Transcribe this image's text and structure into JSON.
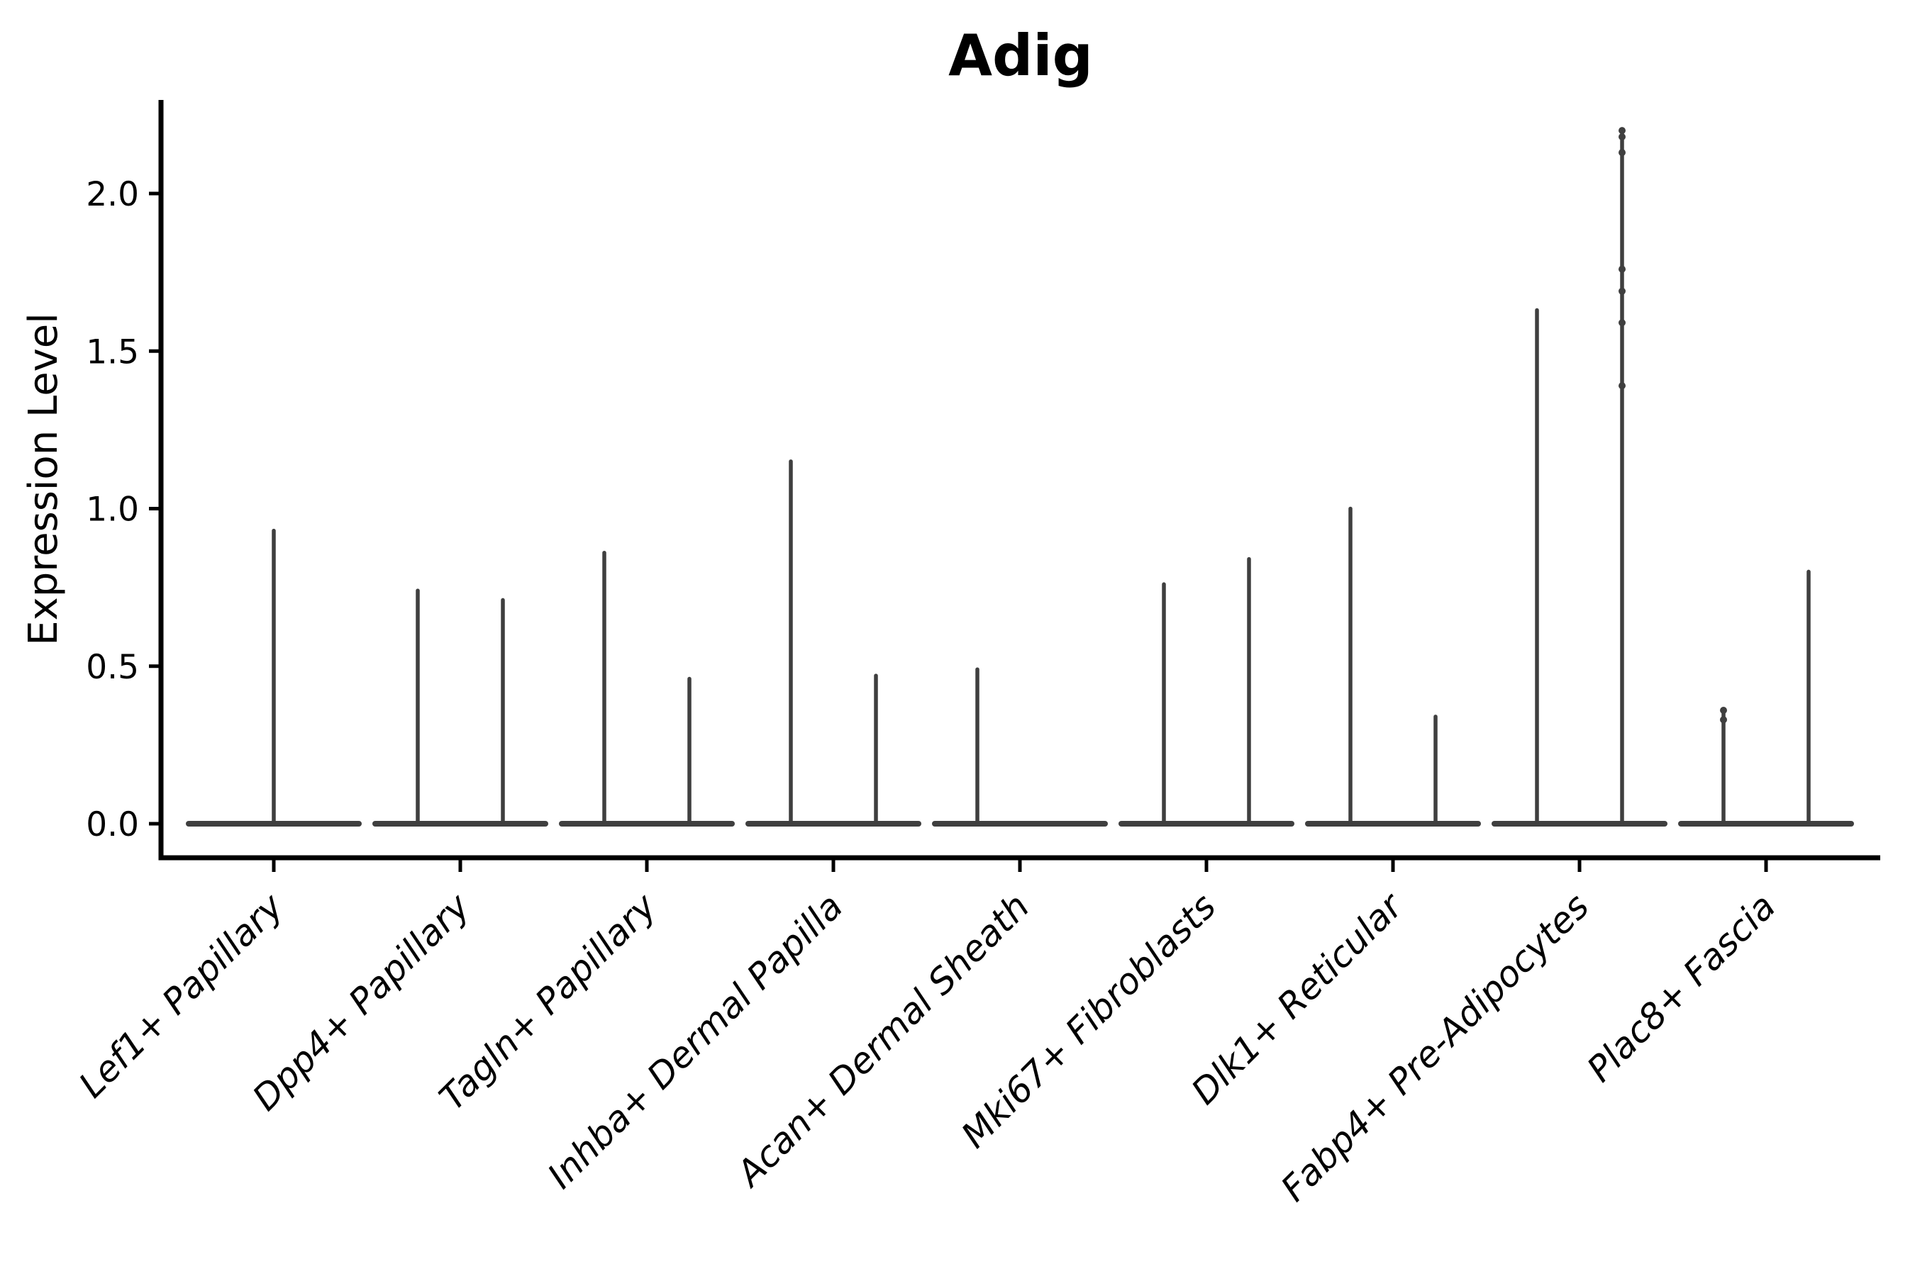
{
  "figure": {
    "background": "#ffffff"
  },
  "chart_data": {
    "type": "violin",
    "title": "Adig",
    "ylabel": "Expression Level",
    "xlabel": "",
    "grid": false,
    "legend": null,
    "ylim": [
      -0.11,
      2.3
    ],
    "ytick_values": [
      0.0,
      0.5,
      1.0,
      1.5,
      2.0
    ],
    "ytick_labels": [
      "0.0",
      "0.5",
      "1.0",
      "1.5",
      "2.0"
    ],
    "colors": {
      "violin_line": "#3f3f3f",
      "axis": "#000000",
      "text": "#000000",
      "background": "#ffffff"
    },
    "categories": [
      {
        "label": "Lef1+ Papillary",
        "violins": [
          {
            "slot": "center",
            "max": 0.93
          }
        ]
      },
      {
        "label": "Dpp4+ Papillary",
        "violins": [
          {
            "slot": "left",
            "max": 0.74
          },
          {
            "slot": "right",
            "max": 0.71
          }
        ]
      },
      {
        "label": "Tagln+ Papillary",
        "violins": [
          {
            "slot": "left",
            "max": 0.86
          },
          {
            "slot": "right",
            "max": 0.46
          }
        ]
      },
      {
        "label": "Inhba+ Dermal Papilla",
        "violins": [
          {
            "slot": "left",
            "max": 1.15
          },
          {
            "slot": "right",
            "max": 0.47
          }
        ]
      },
      {
        "label": "Acan+ Dermal Sheath",
        "violins": [
          {
            "slot": "left",
            "max": 0.49
          }
        ]
      },
      {
        "label": "Mki67+ Fibroblasts",
        "violins": [
          {
            "slot": "left",
            "max": 0.76
          },
          {
            "slot": "right",
            "max": 0.84
          }
        ]
      },
      {
        "label": "Dlk1+ Reticular",
        "violins": [
          {
            "slot": "left",
            "max": 1.0
          },
          {
            "slot": "right",
            "max": 0.34
          }
        ]
      },
      {
        "label": "Fabp4+ Pre-Adipocytes",
        "violins": [
          {
            "slot": "left",
            "max": 1.63
          },
          {
            "slot": "right",
            "max": 2.2,
            "points": [
              2.2,
              2.18,
              2.13,
              1.76,
              1.69,
              1.59,
              1.39
            ]
          }
        ]
      },
      {
        "label": "Plac8+ Fascia",
        "violins": [
          {
            "slot": "left",
            "max": 0.36,
            "points": [
              0.36,
              0.33
            ]
          },
          {
            "slot": "right",
            "max": 0.8
          }
        ]
      }
    ]
  }
}
